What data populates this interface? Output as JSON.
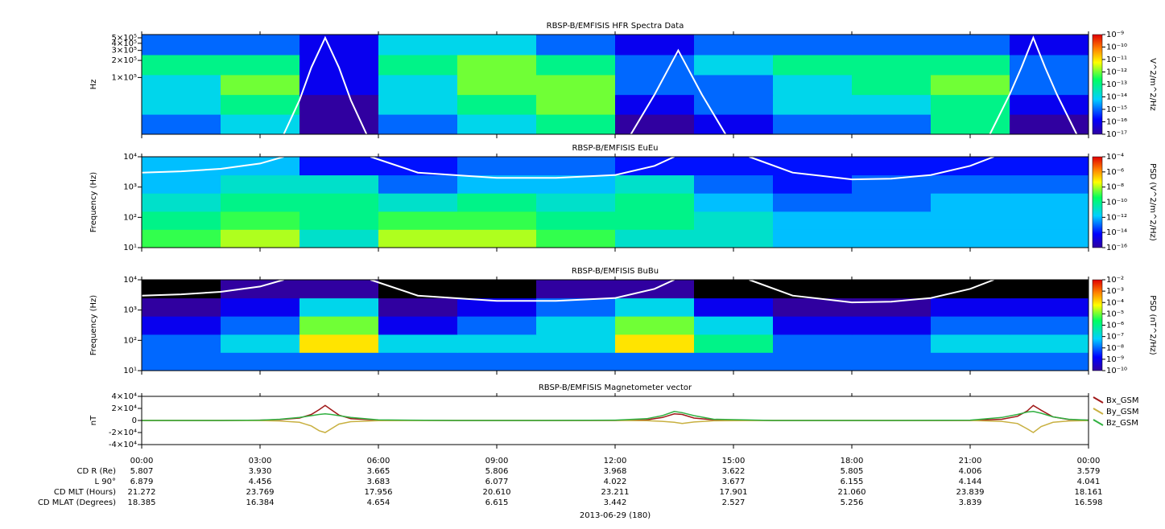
{
  "time_axis": {
    "xlim": [
      0,
      24
    ],
    "xticks": [
      {
        "value": 0,
        "label": "00:00"
      },
      {
        "value": 3,
        "label": "03:00"
      },
      {
        "value": 6,
        "label": "06:00"
      },
      {
        "value": 9,
        "label": "09:00"
      },
      {
        "value": 12,
        "label": "12:00"
      },
      {
        "value": 15,
        "label": "15:00"
      },
      {
        "value": 18,
        "label": "18:00"
      },
      {
        "value": 21,
        "label": "21:00"
      },
      {
        "value": 24,
        "label": "00:00"
      }
    ],
    "rows": [
      {
        "name": "CD R (Re)",
        "values": [
          "5.807",
          "3.930",
          "3.665",
          "5.806",
          "3.968",
          "3.622",
          "5.805",
          "4.006",
          "3.579"
        ]
      },
      {
        "name": "L 90°",
        "values": [
          "6.879",
          "4.456",
          "3.683",
          "6.077",
          "4.022",
          "3.677",
          "6.155",
          "4.144",
          "4.041"
        ]
      },
      {
        "name": "CD MLT (Hours)",
        "values": [
          "21.272",
          "23.769",
          "17.956",
          "20.610",
          "23.211",
          "17.901",
          "21.060",
          "23.839",
          "18.161"
        ]
      },
      {
        "name": "CD MLAT (Degrees)",
        "values": [
          "18.385",
          "16.384",
          "4.654",
          "6.615",
          "3.442",
          "2.527",
          "5.256",
          "3.839",
          "16.598"
        ]
      }
    ],
    "date": "2013-06-29 (180)"
  },
  "chart_data": [
    {
      "type": "heatmap",
      "title": "RBSP-B/EMFISIS  HFR Spectra Data",
      "ylabel": "Hz",
      "log_y": true,
      "ylim": [
        10000,
        570000
      ],
      "yticks": [
        {
          "value": 100000,
          "label": "1×10⁵"
        },
        {
          "value": 200000,
          "label": "2×10⁵"
        },
        {
          "value": 300000,
          "label": "3×10⁵"
        },
        {
          "value": 400000,
          "label": "4×10⁵"
        },
        {
          "value": 500000,
          "label": "5×10⁵"
        }
      ],
      "colorbar_label": "V^2/m^2/Hz",
      "clim": [
        1e-17,
        1e-09
      ],
      "cticks": [
        {
          "value": 1e-09,
          "label": "10⁻⁹"
        },
        {
          "value": 1e-10,
          "label": "10⁻¹⁰"
        },
        {
          "value": 1e-11,
          "label": "10⁻¹¹"
        },
        {
          "value": 1e-12,
          "label": "10⁻¹²"
        },
        {
          "value": 1e-13,
          "label": "10⁻¹³"
        },
        {
          "value": 1e-14,
          "label": "10⁻¹⁴"
        },
        {
          "value": 1e-15,
          "label": "10⁻¹⁵"
        },
        {
          "value": 1e-16,
          "label": "10⁻¹⁶"
        },
        {
          "value": 1e-17,
          "label": "10⁻¹⁷"
        }
      ],
      "x_bins": [
        0,
        2,
        4,
        6,
        8,
        10,
        12,
        14,
        16,
        18,
        20,
        22,
        24
      ],
      "y_bins": [
        10000,
        22500,
        50000,
        112000,
        252000,
        570000
      ],
      "z": [
        [
          1e-15,
          1e-14,
          1e-17,
          1e-15,
          1e-14,
          1e-13,
          1e-17,
          1e-16,
          1e-15,
          1e-15,
          1e-13,
          1e-17
        ],
        [
          1e-14,
          1e-13,
          1e-17,
          1e-14,
          1e-13,
          1e-12,
          1e-16,
          1e-15,
          1e-14,
          1e-14,
          1e-13,
          1e-16
        ],
        [
          1e-14,
          1e-12,
          1e-16,
          1e-14,
          1e-12,
          1e-12,
          1e-15,
          1e-15,
          1e-14,
          1e-13,
          1e-12,
          1e-15
        ],
        [
          1e-13,
          1e-13,
          1e-16,
          1e-13,
          1e-12,
          1e-13,
          1e-15,
          1e-14,
          1e-13,
          1e-13,
          1e-13,
          1e-15
        ],
        [
          1e-15,
          1e-15,
          1e-16,
          1e-14,
          1e-14,
          1e-15,
          1e-16,
          1e-15,
          1e-15,
          1e-15,
          1e-15,
          1e-16
        ]
      ],
      "line": {
        "color": "#ffffff",
        "x": [
          3.6,
          4.0,
          4.3,
          4.65,
          5.0,
          5.3,
          5.7,
          9,
          12.4,
          13.0,
          13.6,
          14.2,
          14.8,
          18,
          21.5,
          22.0,
          22.3,
          22.6,
          22.9,
          23.2,
          23.7
        ],
        "values": [
          10000,
          40000,
          150000,
          500000,
          150000,
          40000,
          10000,
          null,
          10000,
          50000,
          300000,
          50000,
          10000,
          null,
          10000,
          50000,
          150000,
          500000,
          150000,
          50000,
          10000
        ]
      }
    },
    {
      "type": "heatmap",
      "title": "RBSP-B/EMFISIS  EuEu",
      "ylabel": "Frequency (Hz)",
      "log_y": true,
      "ylim": [
        10,
        10000
      ],
      "yticks": [
        {
          "value": 10,
          "label": "10¹"
        },
        {
          "value": 100,
          "label": "10²"
        },
        {
          "value": 1000,
          "label": "10³"
        },
        {
          "value": 10000,
          "label": "10⁴"
        }
      ],
      "colorbar_label": "PSD (V^2/m^2/Hz)",
      "clim": [
        1e-16,
        0.0001
      ],
      "cticks": [
        {
          "value": 0.0001,
          "label": "10⁻⁴"
        },
        {
          "value": 1e-06,
          "label": "10⁻⁶"
        },
        {
          "value": 1e-08,
          "label": "10⁻⁸"
        },
        {
          "value": 1e-10,
          "label": "10⁻¹⁰"
        },
        {
          "value": 1e-12,
          "label": "10⁻¹²"
        },
        {
          "value": 1e-14,
          "label": "10⁻¹⁴"
        },
        {
          "value": 1e-16,
          "label": "10⁻¹⁶"
        }
      ],
      "x_bins": [
        0,
        2,
        4,
        6,
        8,
        10,
        12,
        14,
        16,
        18,
        20,
        22,
        24
      ],
      "y_bins": [
        10,
        40,
        158,
        631,
        2512,
        10000
      ],
      "z": [
        [
          1e-09,
          1e-08,
          1e-11,
          1e-08,
          1e-08,
          1e-09,
          1e-11,
          1e-11,
          1e-12,
          1e-12,
          1e-12,
          1e-12
        ],
        [
          1e-10,
          1e-09,
          1e-10,
          1e-09,
          1e-09,
          1e-10,
          1e-10,
          1e-11,
          1e-12,
          1e-12,
          1e-12,
          1e-12
        ],
        [
          1e-11,
          1e-10,
          1e-10,
          1e-11,
          1e-10,
          1e-11,
          1e-10,
          1e-12,
          1e-13,
          1e-13,
          1e-12,
          1e-12
        ],
        [
          1e-12,
          1e-11,
          1e-11,
          1e-13,
          1e-12,
          1e-12,
          1e-11,
          1e-13,
          1e-14,
          1e-13,
          1e-13,
          1e-13
        ],
        [
          1e-12,
          1e-12,
          1e-14,
          1e-14,
          1e-13,
          1e-13,
          1e-14,
          1e-14,
          1e-14,
          1e-14,
          1e-14,
          1e-14
        ]
      ],
      "line": {
        "color": "#ffffff",
        "x": [
          0,
          1,
          2,
          3,
          3.6,
          4.5,
          5.8,
          7,
          9,
          10.5,
          12,
          13,
          13.5,
          14.5,
          15.4,
          16.5,
          18,
          19,
          20,
          21,
          21.6
        ],
        "values": [
          3000,
          3300,
          4000,
          6000,
          10000,
          null,
          10000,
          3000,
          2000,
          2000,
          2500,
          5000,
          10000,
          null,
          10000,
          3000,
          1800,
          1900,
          2500,
          5000,
          10000
        ]
      }
    },
    {
      "type": "heatmap",
      "title": "RBSP-B/EMFISIS  BuBu",
      "ylabel": "Frequency (Hz)",
      "log_y": true,
      "ylim": [
        10,
        10000
      ],
      "yticks": [
        {
          "value": 10,
          "label": "10¹"
        },
        {
          "value": 100,
          "label": "10²"
        },
        {
          "value": 1000,
          "label": "10³"
        },
        {
          "value": 10000,
          "label": "10⁴"
        }
      ],
      "colorbar_label": "PSD (nT^2/Hz)",
      "clim": [
        1e-10,
        0.01
      ],
      "cticks": [
        {
          "value": 0.01,
          "label": "10⁻²"
        },
        {
          "value": 0.001,
          "label": "10⁻³"
        },
        {
          "value": 0.0001,
          "label": "10⁻⁴"
        },
        {
          "value": 1e-05,
          "label": "10⁻⁵"
        },
        {
          "value": 1e-06,
          "label": "10⁻⁶"
        },
        {
          "value": 1e-07,
          "label": "10⁻⁷"
        },
        {
          "value": 1e-08,
          "label": "10⁻⁸"
        },
        {
          "value": 1e-09,
          "label": "10⁻⁹"
        },
        {
          "value": 1e-10,
          "label": "10⁻¹⁰"
        }
      ],
      "x_bins": [
        0,
        2,
        4,
        6,
        8,
        10,
        12,
        14,
        16,
        18,
        20,
        22,
        24
      ],
      "y_bins": [
        10,
        40,
        158,
        631,
        2512,
        10000
      ],
      "z": [
        [
          1e-08,
          1e-08,
          1e-08,
          1e-08,
          1e-08,
          1e-08,
          1e-08,
          1e-08,
          1e-08,
          1e-08,
          1e-08,
          1e-08
        ],
        [
          1e-08,
          1e-07,
          0.0001,
          1e-07,
          1e-07,
          1e-07,
          0.0001,
          1e-06,
          1e-08,
          1e-08,
          1e-07,
          1e-07
        ],
        [
          1e-09,
          1e-08,
          1e-05,
          1e-09,
          1e-08,
          1e-07,
          1e-05,
          1e-07,
          1e-09,
          1e-09,
          1e-08,
          1e-08
        ],
        [
          1e-10,
          1e-09,
          1e-07,
          1e-10,
          1e-09,
          1e-08,
          1e-07,
          1e-09,
          1e-10,
          1e-10,
          1e-09,
          1e-09
        ],
        [
          1e-11,
          1e-10,
          1e-10,
          1e-11,
          1e-11,
          1e-10,
          1e-10,
          1e-11,
          1e-11,
          1e-11,
          1e-11,
          1e-11
        ]
      ],
      "line": {
        "color": "#ffffff",
        "x": [
          0,
          1,
          2,
          3,
          3.6,
          4.5,
          5.8,
          7,
          9,
          10.5,
          12,
          13,
          13.5,
          14.5,
          15.4,
          16.5,
          18,
          19,
          20,
          21,
          21.6
        ],
        "values": [
          3000,
          3300,
          4000,
          6000,
          10000,
          null,
          10000,
          3000,
          2000,
          2000,
          2500,
          5000,
          10000,
          null,
          10000,
          3000,
          1800,
          1900,
          2500,
          5000,
          10000
        ]
      }
    },
    {
      "type": "line",
      "title": "RBSP-B/EMFISIS  Magnetometer vector",
      "ylabel": "nT",
      "ylim": [
        -40000,
        40000
      ],
      "yticks": [
        {
          "value": 40000,
          "label": "4×10⁴"
        },
        {
          "value": 20000,
          "label": "2×10⁴"
        },
        0,
        {
          "value": -20000,
          "label": "-2×10⁴"
        },
        {
          "value": -40000,
          "label": "-4×10⁴"
        }
      ],
      "x": [
        0,
        2,
        3,
        3.5,
        4,
        4.3,
        4.5,
        4.65,
        4.8,
        5,
        5.3,
        6,
        8,
        10,
        12,
        12.8,
        13.2,
        13.5,
        13.7,
        14,
        14.5,
        16,
        19,
        21,
        21.8,
        22.2,
        22.45,
        22.6,
        22.8,
        23.1,
        23.5,
        24
      ],
      "series": [
        {
          "name": "Bx_GSM",
          "color": "#a01818",
          "values": [
            0,
            0,
            500,
            1500,
            4000,
            10000,
            18000,
            25000,
            18000,
            9000,
            3000,
            500,
            0,
            0,
            0,
            1000,
            5000,
            11000,
            10000,
            4000,
            1000,
            0,
            0,
            0,
            2000,
            7000,
            16000,
            25000,
            17000,
            6000,
            1500,
            500
          ]
        },
        {
          "name": "By_GSM",
          "color": "#c8b040",
          "values": [
            0,
            0,
            -200,
            -800,
            -3000,
            -9000,
            -17000,
            -20000,
            -14000,
            -6000,
            -2000,
            -300,
            0,
            0,
            0,
            -300,
            -1500,
            -3000,
            -5000,
            -2500,
            -500,
            0,
            0,
            0,
            -1500,
            -5000,
            -14000,
            -20000,
            -10000,
            -3000,
            -800,
            -200
          ]
        },
        {
          "name": "Bz_GSM",
          "color": "#30b040",
          "values": [
            0,
            0,
            500,
            2000,
            5000,
            8000,
            10000,
            11000,
            10000,
            8000,
            5000,
            1000,
            0,
            0,
            500,
            3000,
            8000,
            15000,
            13000,
            8000,
            2000,
            0,
            0,
            500,
            5000,
            10000,
            14000,
            15000,
            12000,
            6000,
            2000,
            500
          ]
        }
      ]
    }
  ]
}
